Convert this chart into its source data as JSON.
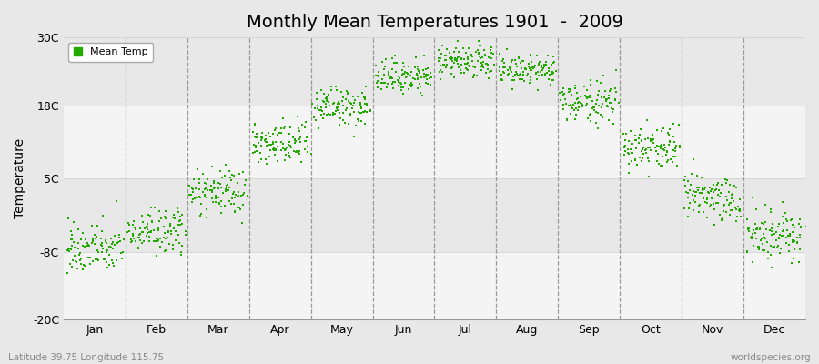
{
  "title": "Monthly Mean Temperatures 1901  -  2009",
  "ylabel": "Temperature",
  "footer_left": "Latitude 39.75 Longitude 115.75",
  "footer_right": "worldspecies.org",
  "legend_label": "Mean Temp",
  "dot_color": "#22aa00",
  "background_color": "#e8e8e8",
  "band_color_light": "#f4f4f4",
  "ylim": [
    -20,
    30
  ],
  "yticks": [
    -20,
    -8,
    5,
    18,
    30
  ],
  "ytick_labels": [
    "-20C",
    "-8C",
    "5C",
    "18C",
    "30C"
  ],
  "months": [
    "Jan",
    "Feb",
    "Mar",
    "Apr",
    "May",
    "Jun",
    "Jul",
    "Aug",
    "Sep",
    "Oct",
    "Nov",
    "Dec"
  ],
  "monthly_mean": [
    -7.5,
    -4.5,
    2.5,
    11.0,
    17.5,
    23.0,
    25.5,
    24.0,
    18.5,
    10.5,
    1.5,
    -5.0
  ],
  "monthly_std": [
    2.2,
    2.0,
    2.0,
    2.0,
    1.8,
    1.5,
    1.5,
    1.5,
    1.8,
    2.0,
    2.2,
    2.2
  ],
  "n_years": 109,
  "dot_size": 3.5,
  "figwidth": 9.0,
  "figheight": 4.0,
  "dpi": 100
}
